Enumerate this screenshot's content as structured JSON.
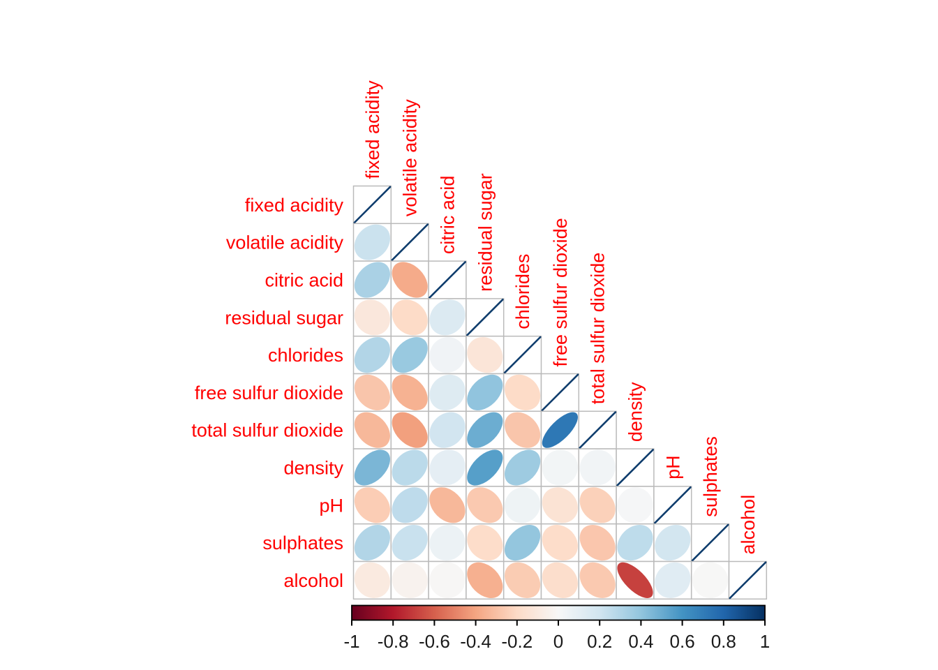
{
  "chart_data": {
    "type": "heatmap",
    "subtype": "correlation-matrix-ellipse-glyphs",
    "title": "",
    "legend_position": "bottom",
    "grid": true,
    "variables": [
      "fixed acidity",
      "volatile acidity",
      "citric acid",
      "residual sugar",
      "chlorides",
      "free sulfur dioxide",
      "total sulfur dioxide",
      "density",
      "pH",
      "sulphates",
      "alcohol"
    ],
    "matrix_lower_triangle": [
      [
        1.0
      ],
      [
        0.219,
        1.0
      ],
      [
        0.324,
        -0.378,
        1.0
      ],
      [
        -0.112,
        -0.196,
        0.142,
        1.0
      ],
      [
        0.298,
        0.377,
        0.039,
        -0.129,
        1.0
      ],
      [
        -0.282,
        -0.353,
        0.133,
        0.403,
        -0.195,
        1.0
      ],
      [
        -0.329,
        -0.414,
        0.195,
        0.495,
        -0.28,
        0.721,
        1.0
      ],
      [
        0.459,
        0.271,
        0.096,
        0.553,
        0.363,
        0.026,
        0.032,
        1.0
      ],
      [
        -0.253,
        0.261,
        -0.33,
        -0.267,
        0.045,
        -0.146,
        -0.238,
        0.012,
        1.0
      ],
      [
        0.3,
        0.226,
        0.056,
        -0.186,
        0.395,
        -0.188,
        -0.276,
        0.259,
        0.192,
        1.0
      ],
      [
        -0.095,
        -0.038,
        -0.01,
        -0.359,
        -0.257,
        -0.18,
        -0.266,
        -0.687,
        0.121,
        -0.003,
        1.0
      ]
    ],
    "colorbar": {
      "min": -1,
      "max": 1,
      "tick_labels": [
        "-1",
        "-0.8",
        "-0.6",
        "-0.4",
        "-0.2",
        "0",
        "0.2",
        "0.4",
        "0.6",
        "0.8",
        "1"
      ],
      "palette_stops": [
        "#67001F",
        "#B2182B",
        "#D6604D",
        "#F4A582",
        "#FDDBC7",
        "#F7F7F7",
        "#D1E5F0",
        "#92C5DE",
        "#4393C3",
        "#2166AC",
        "#053061"
      ]
    }
  },
  "styles": {
    "background": "#ffffff",
    "label_color": "#ff0000",
    "tick_label_color": "#1a1a1a",
    "grid_color": "#bababa",
    "diag_line_color": "#0f3d6d",
    "colorbar_border_color": "#000000"
  }
}
